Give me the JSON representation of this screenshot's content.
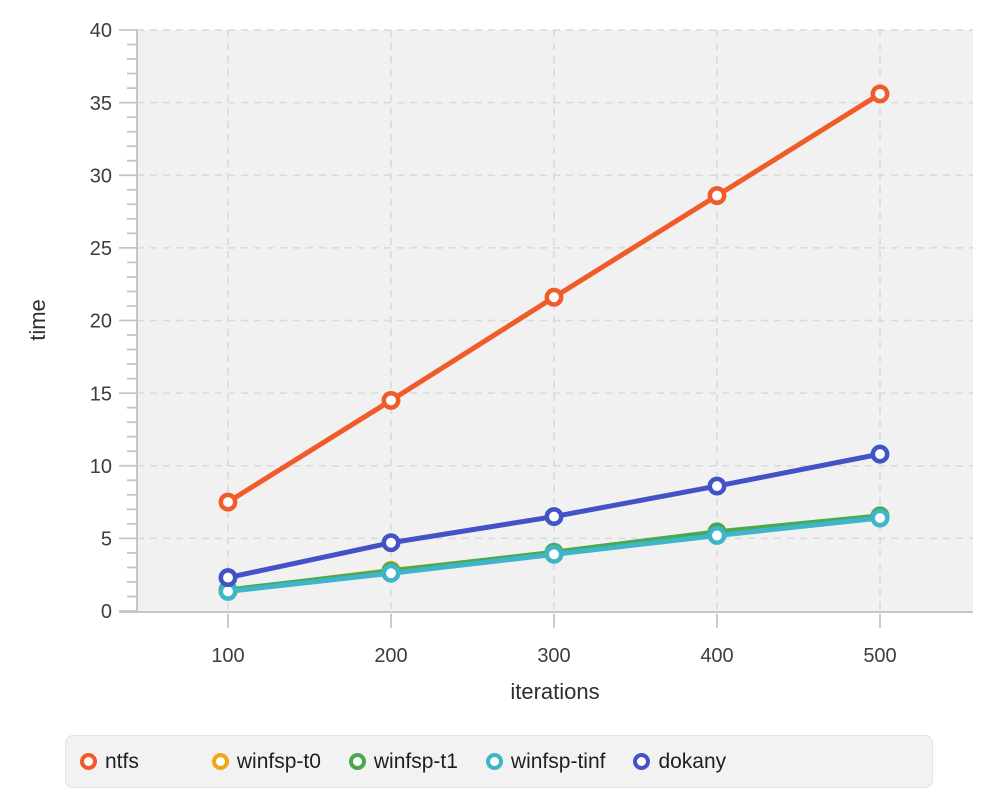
{
  "chart_data": {
    "type": "line",
    "x": [
      100,
      200,
      300,
      400,
      500
    ],
    "x_tick_labels": [
      "100",
      "200",
      "300",
      "400",
      "500"
    ],
    "y_ticks": [
      0,
      5,
      10,
      15,
      20,
      25,
      30,
      35,
      40
    ],
    "y_tick_labels": [
      "0",
      "5",
      "10",
      "15",
      "20",
      "25",
      "30",
      "35",
      "40"
    ],
    "xlabel": "iterations",
    "ylabel": "time",
    "ylim": [
      0,
      40
    ],
    "xlim": [
      44,
      557
    ],
    "grid": "dashed",
    "legend_position": "bottom",
    "plot_background": "#f1f1f2",
    "gridline_color": "#d9d9d9",
    "axis_color": "#c5c5c7",
    "tick_label_color": "#3d3d3d",
    "series": [
      {
        "name": "ntfs",
        "color": "#f15b2a",
        "values": [
          7.5,
          14.5,
          21.6,
          28.6,
          35.6
        ]
      },
      {
        "name": "winfsp-t0",
        "color": "#f2a71b",
        "values": [
          1.4,
          2.8,
          4.0,
          5.35,
          6.5
        ]
      },
      {
        "name": "winfsp-t1",
        "color": "#4aa84e",
        "values": [
          1.45,
          2.75,
          4.05,
          5.45,
          6.55
        ]
      },
      {
        "name": "winfsp-tinf",
        "color": "#3eb5c9",
        "values": [
          1.35,
          2.6,
          3.9,
          5.2,
          6.4
        ]
      },
      {
        "name": "dokany",
        "color": "#4253c8",
        "values": [
          2.3,
          4.7,
          6.5,
          8.6,
          10.8
        ]
      }
    ]
  }
}
